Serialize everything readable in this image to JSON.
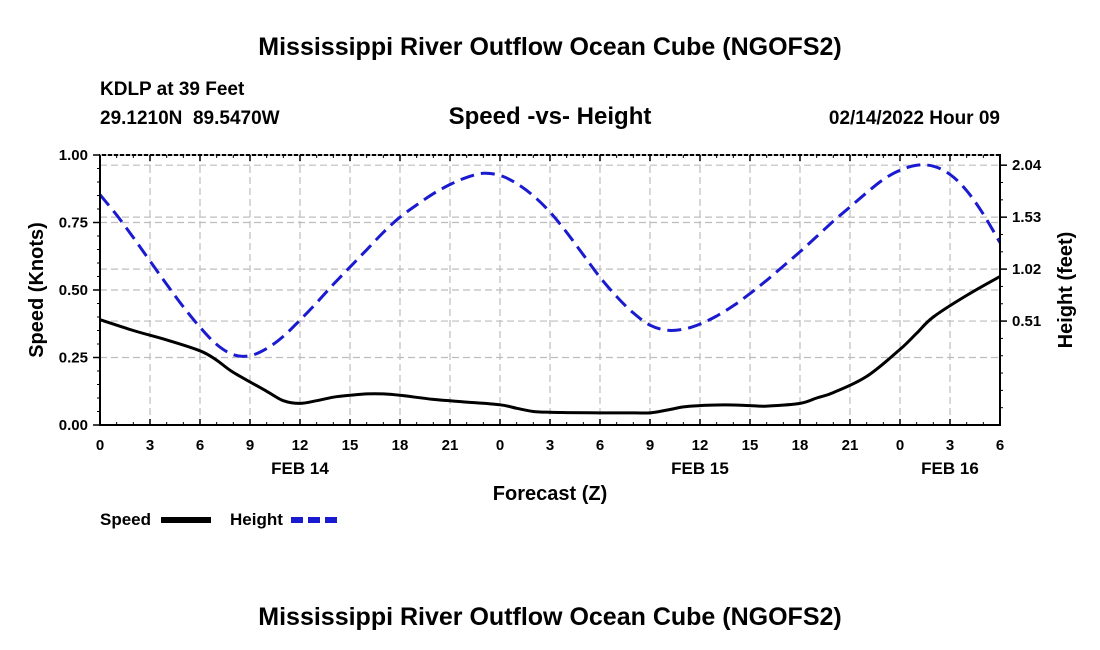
{
  "title": "Mississippi River Outflow Ocean Cube (NGOFS2)",
  "station": "KDLP at 39 Feet",
  "coords": "29.1210N  89.5470W",
  "subtitle": "Speed -vs- Height",
  "datetime": "02/14/2022 Hour 09",
  "footer_title": "Mississippi River Outflow Ocean Cube (NGOFS2)",
  "colors": {
    "speed": "#000000",
    "height": "#1a1ad0",
    "grid": "#bdbdbd"
  },
  "chart_data": {
    "type": "line",
    "xlabel": "Forecast (Z)",
    "ylabel": "Speed (Knots)",
    "y2label": "Height (feet)",
    "xlim": [
      0,
      54
    ],
    "ylim": [
      0,
      1
    ],
    "y2lim": [
      -0.51,
      2.14
    ],
    "x_ticks": [
      0,
      3,
      6,
      9,
      12,
      15,
      18,
      21,
      24,
      27,
      30,
      33,
      36,
      39,
      42,
      45,
      48,
      51,
      54
    ],
    "x_tick_labels": [
      "0",
      "3",
      "6",
      "9",
      "12",
      "15",
      "18",
      "21",
      "0",
      "3",
      "6",
      "9",
      "12",
      "15",
      "18",
      "21",
      "0",
      "3",
      "6"
    ],
    "y_ticks": [
      0,
      0.25,
      0.5,
      0.75,
      1.0
    ],
    "y_tick_labels": [
      "0.00",
      "0.25",
      "0.50",
      "0.75",
      "1.00"
    ],
    "y2_ticks": [
      0.51,
      1.02,
      1.53,
      2.04
    ],
    "y2_tick_labels": [
      "0.51",
      "1.02",
      "1.53",
      "2.04"
    ],
    "date_labels": [
      {
        "x": 12,
        "label": "FEB 14"
      },
      {
        "x": 36,
        "label": "FEB 15"
      },
      {
        "x": 51,
        "label": "FEB 16"
      }
    ],
    "series": [
      {
        "name": "Speed",
        "axis": "left",
        "style": "solid",
        "x": [
          0,
          2,
          4,
          6,
          7,
          8,
          10,
          11,
          12,
          13,
          14,
          15,
          16,
          17,
          18,
          20,
          22,
          24,
          25,
          26,
          27,
          28,
          30,
          32,
          33,
          34,
          35,
          36,
          37,
          38,
          39,
          40,
          42,
          43,
          44,
          46,
          48,
          49,
          50,
          52,
          54
        ],
        "values": [
          0.39,
          0.35,
          0.315,
          0.275,
          0.24,
          0.195,
          0.125,
          0.09,
          0.08,
          0.09,
          0.103,
          0.11,
          0.115,
          0.115,
          0.11,
          0.095,
          0.085,
          0.075,
          0.062,
          0.05,
          0.047,
          0.046,
          0.045,
          0.045,
          0.045,
          0.055,
          0.067,
          0.072,
          0.074,
          0.074,
          0.072,
          0.07,
          0.08,
          0.1,
          0.12,
          0.18,
          0.28,
          0.34,
          0.4,
          0.48,
          0.55
        ]
      },
      {
        "name": "Height",
        "axis": "right",
        "style": "dashed",
        "x": [
          0,
          1,
          2,
          3,
          4,
          5,
          6,
          7,
          8,
          9,
          10,
          11,
          12,
          13,
          14,
          15,
          16,
          17,
          18,
          19,
          20,
          21,
          22,
          23,
          24,
          25,
          26,
          27,
          28,
          29,
          30,
          31,
          32,
          33,
          34,
          35,
          36,
          37,
          38,
          39,
          40,
          41,
          42,
          43,
          44,
          45,
          46,
          47,
          48,
          49,
          50,
          51,
          52,
          53,
          54
        ],
        "values": [
          1.75,
          1.55,
          1.33,
          1.1,
          0.87,
          0.65,
          0.45,
          0.28,
          0.18,
          0.17,
          0.24,
          0.36,
          0.52,
          0.69,
          0.87,
          1.04,
          1.21,
          1.38,
          1.53,
          1.65,
          1.76,
          1.85,
          1.92,
          1.96,
          1.94,
          1.86,
          1.74,
          1.58,
          1.38,
          1.16,
          0.94,
          0.75,
          0.59,
          0.47,
          0.42,
          0.43,
          0.48,
          0.56,
          0.66,
          0.78,
          0.91,
          1.05,
          1.19,
          1.34,
          1.49,
          1.63,
          1.77,
          1.9,
          1.99,
          2.04,
          2.03,
          1.95,
          1.79,
          1.56,
          1.28
        ]
      }
    ],
    "legend": [
      {
        "name": "Speed",
        "style": "solid"
      },
      {
        "name": "Height",
        "style": "dashed"
      }
    ],
    "grid": true
  }
}
